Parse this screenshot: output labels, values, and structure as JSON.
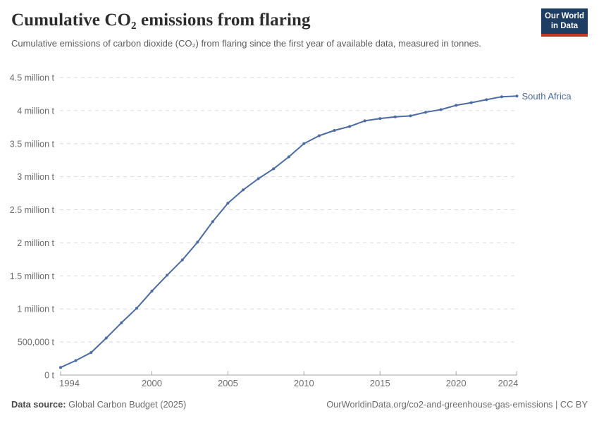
{
  "header": {
    "title": "Cumulative CO₂ emissions from flaring",
    "subtitle": "Cumulative emissions of carbon dioxide (CO₂) from flaring since the first year of available data, measured in tonnes.",
    "logo": {
      "line1": "Our World",
      "line2": "in Data"
    }
  },
  "chart_data": {
    "type": "line",
    "title": "Cumulative CO₂ emissions from flaring",
    "entity": "South Africa",
    "unit": "tonnes",
    "grid": "dashed-horizontal",
    "legend_position": "end-of-line-label",
    "xlim": [
      1994,
      2024
    ],
    "ylim": [
      0,
      4500000
    ],
    "x": [
      1994,
      1995,
      1996,
      1997,
      1998,
      1999,
      2000,
      2001,
      2002,
      2003,
      2004,
      2005,
      2006,
      2007,
      2008,
      2009,
      2010,
      2011,
      2012,
      2013,
      2014,
      2015,
      2016,
      2017,
      2018,
      2019,
      2020,
      2021,
      2022,
      2023,
      2024
    ],
    "values": [
      115000,
      220000,
      340000,
      560000,
      790000,
      1010000,
      1270000,
      1510000,
      1740000,
      2010000,
      2320000,
      2600000,
      2800000,
      2970000,
      3120000,
      3300000,
      3500000,
      3620000,
      3700000,
      3760000,
      3845000,
      3880000,
      3905000,
      3920000,
      3975000,
      4015000,
      4080000,
      4120000,
      4165000,
      4210000,
      4220000
    ],
    "xticks": [
      {
        "year": 1994,
        "label": "1994"
      },
      {
        "year": 2000,
        "label": "2000"
      },
      {
        "year": 2005,
        "label": "2005"
      },
      {
        "year": 2010,
        "label": "2010"
      },
      {
        "year": 2015,
        "label": "2015"
      },
      {
        "year": 2020,
        "label": "2020"
      },
      {
        "year": 2024,
        "label": "2024"
      }
    ],
    "yticks": [
      {
        "value": 0,
        "label": "0 t"
      },
      {
        "value": 500000,
        "label": "500,000 t"
      },
      {
        "value": 1000000,
        "label": "1 million t"
      },
      {
        "value": 1500000,
        "label": "1.5 million t"
      },
      {
        "value": 2000000,
        "label": "2 million t"
      },
      {
        "value": 2500000,
        "label": "2.5 million t"
      },
      {
        "value": 3000000,
        "label": "3 million t"
      },
      {
        "value": 3500000,
        "label": "3.5 million t"
      },
      {
        "value": 4000000,
        "label": "4 million t"
      },
      {
        "value": 4500000,
        "label": "4.5 million t"
      }
    ]
  },
  "colors": {
    "line": "#4C6BA0",
    "entity_label": "#4C6BA0",
    "grid": "#DBDBDB",
    "axis": "#A5A5A5",
    "tick_text": "#6C6C6C",
    "logo_navy": "#1D3D63",
    "logo_red": "#C5392A"
  },
  "footer": {
    "source_label": "Data source:",
    "source_value": "Global Carbon Budget (2025)",
    "attribution": "OurWorldinData.org/co2-and-greenhouse-gas-emissions | CC BY"
  }
}
